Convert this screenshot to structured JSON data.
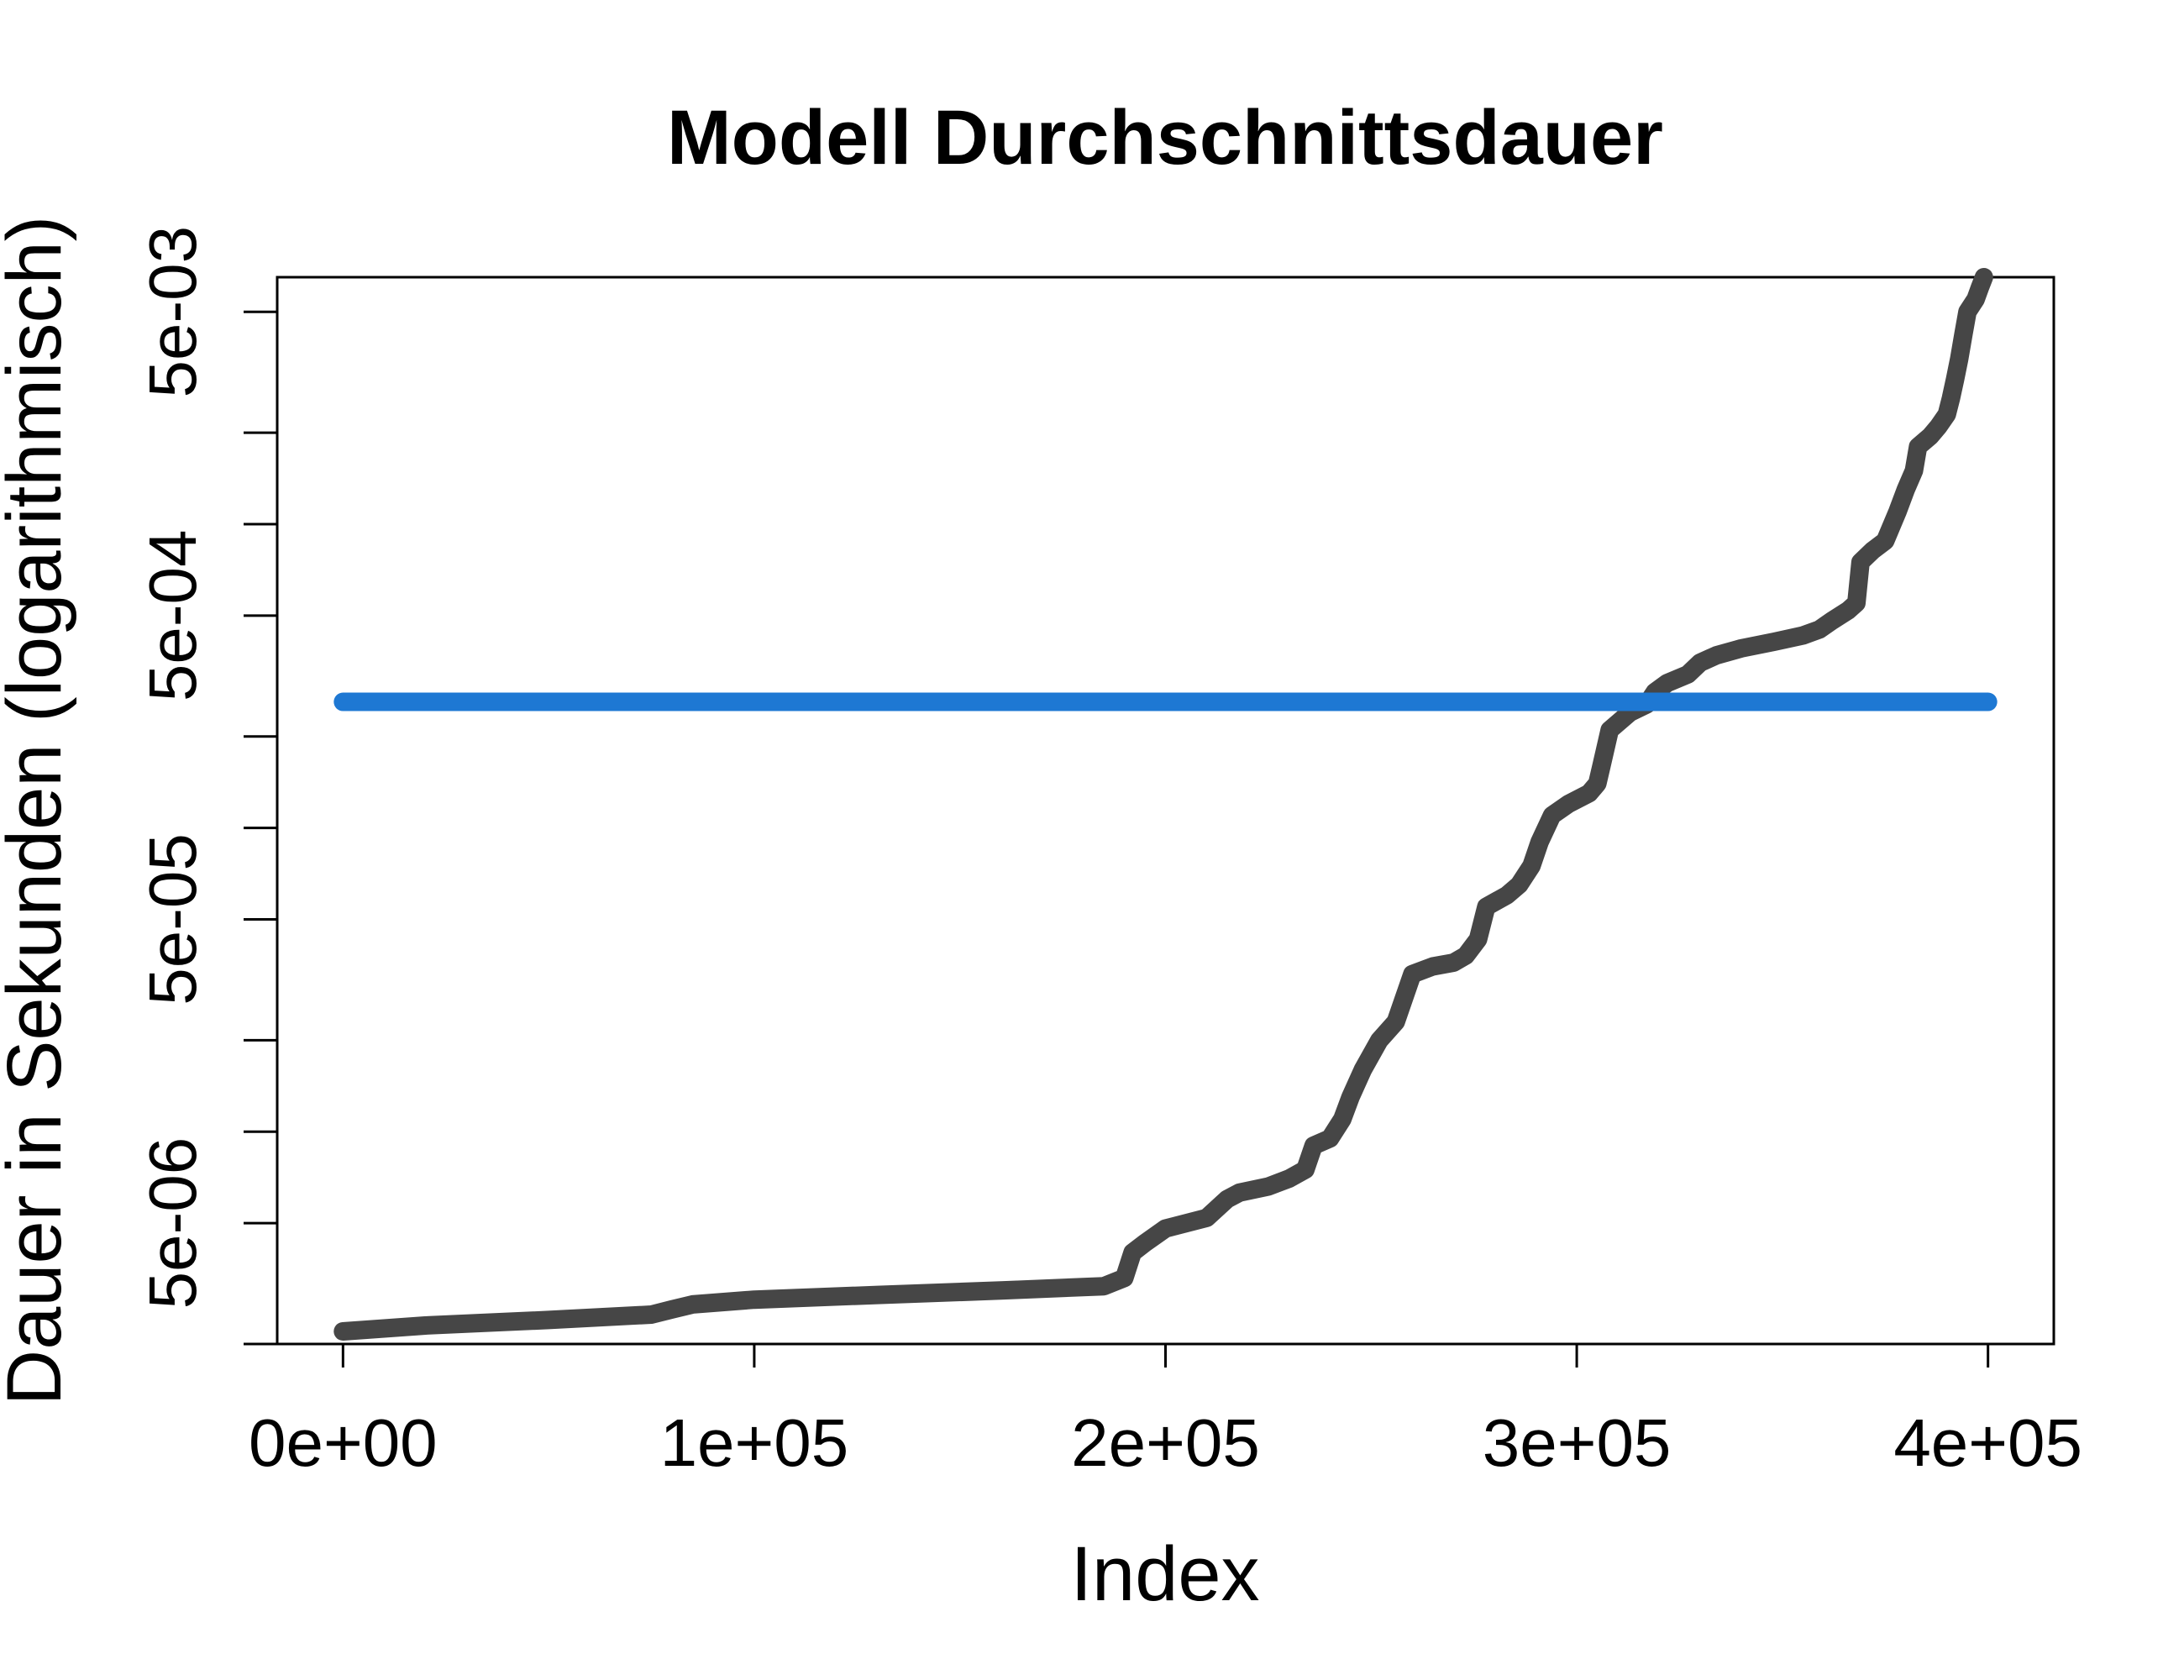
{
  "chart_data": {
    "type": "line",
    "title": "Modell Durchschnittsdauer",
    "xlabel": "Index",
    "ylabel": "Dauer in Sekunden (logarithmisch)",
    "x_ticks": [
      {
        "value": 0,
        "label": "0e+00"
      },
      {
        "value": 100000,
        "label": "1e+05"
      },
      {
        "value": 200000,
        "label": "2e+05"
      },
      {
        "value": 300000,
        "label": "3e+05"
      },
      {
        "value": 400000,
        "label": "4e+05"
      }
    ],
    "y_scale": "log",
    "y_ticks_labeled": [
      {
        "value": 5e-06,
        "label": "5e-06"
      },
      {
        "value": 5e-05,
        "label": "5e-05"
      },
      {
        "value": 0.0005,
        "label": "5e-04"
      },
      {
        "value": 0.005,
        "label": "5e-03"
      }
    ],
    "y_ticks_minor": [
      2e-06,
      1e-05,
      2e-05,
      0.0001,
      0.0002,
      0.001,
      0.002
    ],
    "xlim": [
      -16000,
      416000
    ],
    "ylim": [
      2e-06,
      0.0065
    ],
    "grid": false,
    "series": [
      {
        "color": "#464646",
        "x": [
          0,
          20000,
          50000,
          75000,
          80000,
          85000,
          100000,
          130000,
          160000,
          185000,
          190000,
          192000,
          195000,
          200000,
          210000,
          215000,
          218000,
          225000,
          230000,
          234000,
          236000,
          240000,
          243000,
          245000,
          248000,
          252000,
          256000,
          260000,
          265000,
          270000,
          273000,
          276000,
          278000,
          283000,
          286000,
          289000,
          291000,
          294000,
          298000,
          303000,
          305000,
          306000,
          308000,
          313000,
          317000,
          319000,
          322000,
          327000,
          330000,
          334000,
          340000,
          348000,
          355000,
          359000,
          362000,
          366000,
          368000,
          369000,
          372000,
          375000,
          378000,
          380000,
          382000,
          383000,
          386000,
          388000,
          390000,
          391000,
          392000,
          393000,
          394000,
          395000,
          397000,
          398000,
          399000
        ],
        "y": [
          2.2e-06,
          2.3e-06,
          2.4e-06,
          2.5e-06,
          2.6e-06,
          2.7e-06,
          2.8e-06,
          2.9e-06,
          3e-06,
          3.1e-06,
          3.3e-06,
          4e-06,
          4.3e-06,
          4.8e-06,
          5.2e-06,
          6e-06,
          6.3e-06,
          6.6e-06,
          7e-06,
          7.5e-06,
          9e-06,
          9.5e-06,
          1.1e-05,
          1.3e-05,
          1.6e-05,
          2e-05,
          2.3e-05,
          3.3e-05,
          3.5e-05,
          3.6e-05,
          3.8e-05,
          4.3e-05,
          5.5e-05,
          6e-05,
          6.5e-05,
          7.5e-05,
          9e-05,
          0.00011,
          0.00012,
          0.00013,
          0.00014,
          0.00016,
          0.00021,
          0.00024,
          0.000255,
          0.00028,
          0.0003,
          0.00032,
          0.00035,
          0.00037,
          0.00039,
          0.00041,
          0.00043,
          0.00045,
          0.00048,
          0.00052,
          0.00055,
          0.00075,
          0.00082,
          0.00088,
          0.0011,
          0.0013,
          0.0015,
          0.0018,
          0.00195,
          0.0021,
          0.0023,
          0.0026,
          0.003,
          0.0035,
          0.0042,
          0.005,
          0.0055,
          0.006,
          0.0065
        ]
      },
      {
        "color": "#1e78d3",
        "x": [
          0,
          400000
        ],
        "y": [
          0.00026,
          0.00026
        ]
      }
    ]
  }
}
